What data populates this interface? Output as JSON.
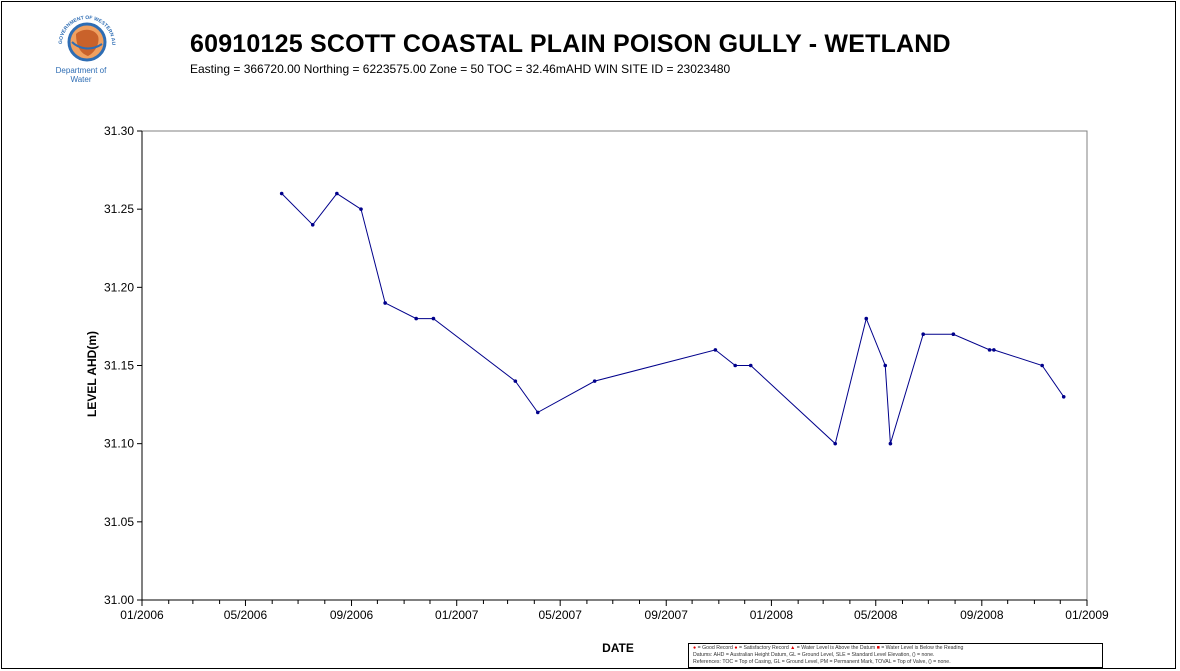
{
  "logo": {
    "arc_text": "GOVERNMENT OF WESTERN AUSTRALIA",
    "line1": "Department of",
    "line2": "Water"
  },
  "header": {
    "title": "60910125 SCOTT COASTAL PLAIN POISON GULLY - WETLAND",
    "subtitle": "Easting = 366720.00  Northing = 6223575.00  Zone = 50  TOC = 32.46mAHD  WIN SITE ID = 23023480"
  },
  "chart_data": {
    "type": "line",
    "title": "60910125 SCOTT COASTAL PLAIN POISON GULLY - WETLAND",
    "xlabel": "DATE",
    "ylabel": "LEVEL AHD(m)",
    "xlim": [
      "2006-01",
      "2009-01"
    ],
    "ylim": [
      31.0,
      31.3
    ],
    "x_ticks": [
      "01/2006",
      "05/2006",
      "09/2006",
      "01/2007",
      "05/2007",
      "09/2007",
      "01/2008",
      "05/2008",
      "09/2008",
      "01/2009"
    ],
    "y_ticks": [
      "31.00",
      "31.05",
      "31.10",
      "31.15",
      "31.20",
      "31.25",
      "31.30"
    ],
    "grid": false,
    "series": [
      {
        "color": "#00008b",
        "points": [
          {
            "date": "2006-06-12",
            "y": 31.26
          },
          {
            "date": "2006-07-18",
            "y": 31.24
          },
          {
            "date": "2006-08-15",
            "y": 31.26
          },
          {
            "date": "2006-09-12",
            "y": 31.25
          },
          {
            "date": "2006-10-10",
            "y": 31.19
          },
          {
            "date": "2006-11-15",
            "y": 31.18
          },
          {
            "date": "2006-12-05",
            "y": 31.18
          },
          {
            "date": "2007-03-10",
            "y": 31.14
          },
          {
            "date": "2007-04-05",
            "y": 31.12
          },
          {
            "date": "2007-06-10",
            "y": 31.14
          },
          {
            "date": "2007-10-28",
            "y": 31.16
          },
          {
            "date": "2007-11-20",
            "y": 31.15
          },
          {
            "date": "2007-12-08",
            "y": 31.15
          },
          {
            "date": "2008-03-15",
            "y": 31.1
          },
          {
            "date": "2008-04-20",
            "y": 31.18
          },
          {
            "date": "2008-05-12",
            "y": 31.15
          },
          {
            "date": "2008-05-18",
            "y": 31.1
          },
          {
            "date": "2008-06-25",
            "y": 31.17
          },
          {
            "date": "2008-07-30",
            "y": 31.17
          },
          {
            "date": "2008-09-10",
            "y": 31.16
          },
          {
            "date": "2008-09-15",
            "y": 31.16
          },
          {
            "date": "2008-11-10",
            "y": 31.15
          },
          {
            "date": "2008-12-05",
            "y": 31.13
          }
        ]
      }
    ]
  },
  "legend": {
    "good": "= Good Record",
    "satisfactory": "= Satisfactory Record",
    "above": "= Water Level is Above the Datum",
    "below": "= Water Level is Below the Reading",
    "datums": "Datums: AHD = Australian Height Datum, GL = Ground Level, SLE = Standard Level Elevation, () = none.",
    "references": "References: TOC = Top of Casing, GL = Ground Level, PM = Permanent Mark, TOVAL = Top of Valve, () = none.",
    "color_good": "#e00000"
  }
}
